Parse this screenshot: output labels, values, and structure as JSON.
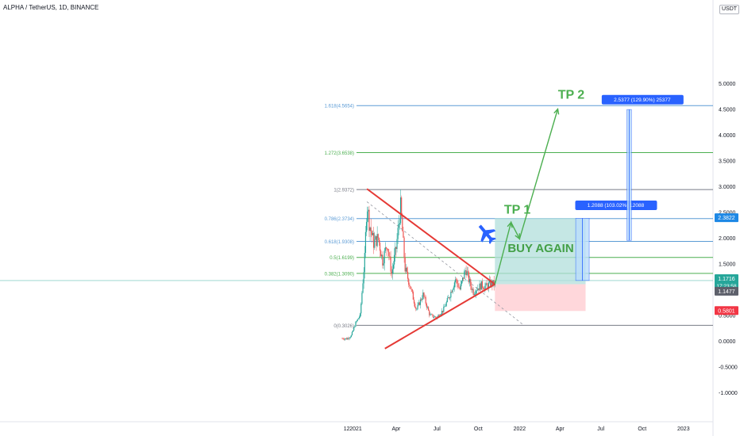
{
  "header": {
    "title": "ALPHA / TetherUS, 1D, BINANCE",
    "currency": "USDT"
  },
  "colors": {
    "fib_blue": "#5b9bd5",
    "fib_green": "#4caf50",
    "fib_grey": "#787b86",
    "triangle": "#e53935",
    "target_arrow": "#4caf50",
    "buy_text": "#43a047",
    "up_candle": "#26a69a",
    "down_candle": "#ef5350",
    "profit_zone": "#b2dfdb",
    "loss_zone": "#ffcdd2",
    "measure_blue": "#2962ff",
    "rocket": "#2962ff"
  },
  "chart_data": {
    "type": "candlestick",
    "symbol": "ALPHA / TetherUS",
    "timeframe": "1D",
    "exchange": "BINANCE",
    "y_axis": {
      "range": [
        -1.2,
        5.2
      ],
      "ticks": [
        5.0,
        4.5,
        4.0,
        3.5,
        3.0,
        2.5,
        2.0,
        1.5,
        1.0,
        0.5,
        0.0,
        -0.5,
        -1.0
      ],
      "tick_labels": [
        "5.0000",
        "4.5000",
        "4.0000",
        "3.5000",
        "3.0000",
        "2.5000",
        "2.0000",
        "1.5000",
        "1.0000",
        "0.5000",
        "0.0000",
        "-0.5000",
        "-1.0000"
      ]
    },
    "x_axis": {
      "labels": [
        {
          "t": -20,
          "label": "12"
        },
        {
          "t": 0,
          "label": "2021"
        },
        {
          "t": 90,
          "label": "Apr"
        },
        {
          "t": 181,
          "label": "Jul"
        },
        {
          "t": 273,
          "label": "Oct"
        },
        {
          "t": 365,
          "label": "2022"
        },
        {
          "t": 455,
          "label": "Apr"
        },
        {
          "t": 546,
          "label": "Jul"
        },
        {
          "t": 638,
          "label": "Oct"
        },
        {
          "t": 730,
          "label": "2023"
        }
      ]
    },
    "fib_levels": [
      {
        "label": "1.618(4.5654)",
        "value": 4.5654,
        "color": "fib_blue"
      },
      {
        "label": "1.272(3.6538)",
        "value": 3.6538,
        "color": "fib_green"
      },
      {
        "label": "1(2.9372)",
        "value": 2.9372,
        "color": "fib_grey"
      },
      {
        "label": "0.786(2.3734)",
        "value": 2.3734,
        "color": "fib_blue"
      },
      {
        "label": "0.618(1.9308)",
        "value": 1.9308,
        "color": "fib_blue"
      },
      {
        "label": "0.5(1.6199)",
        "value": 1.6199,
        "color": "fib_green"
      },
      {
        "label": "0.382(1.3090)",
        "value": 1.309,
        "color": "fib_green"
      },
      {
        "label": "0(0.3026)",
        "value": 0.3026,
        "color": "fib_grey"
      }
    ],
    "price_path": [
      [
        -30,
        0.05
      ],
      [
        -20,
        0.04
      ],
      [
        -10,
        0.1
      ],
      [
        0,
        0.35
      ],
      [
        10,
        0.5
      ],
      [
        20,
        1.6
      ],
      [
        25,
        2.7
      ],
      [
        30,
        2.3
      ],
      [
        40,
        1.9
      ],
      [
        50,
        2.0
      ],
      [
        60,
        1.55
      ],
      [
        70,
        1.9
      ],
      [
        80,
        1.3
      ],
      [
        90,
        1.8
      ],
      [
        100,
        2.6
      ],
      [
        110,
        1.4
      ],
      [
        120,
        1.1
      ],
      [
        135,
        0.6
      ],
      [
        150,
        0.9
      ],
      [
        165,
        0.5
      ],
      [
        180,
        0.45
      ],
      [
        195,
        0.6
      ],
      [
        210,
        0.9
      ],
      [
        222,
        1.2
      ],
      [
        232,
        1.0
      ],
      [
        245,
        1.4
      ],
      [
        255,
        1.1
      ],
      [
        262,
        0.95
      ],
      [
        270,
        1.02
      ],
      [
        280,
        1.08
      ],
      [
        290,
        1.05
      ],
      [
        300,
        1.12
      ],
      [
        310,
        1.1
      ]
    ],
    "triangle": {
      "upper_line": [
        [
          25,
          2.95
        ],
        [
          310,
          1.1
        ]
      ],
      "lower_line": [
        [
          65,
          -0.15
        ],
        [
          310,
          1.1
        ]
      ],
      "dashed_line": [
        [
          25,
          2.7
        ],
        [
          375,
          0.3
        ]
      ]
    },
    "annotations": [
      {
        "text": "TP 1",
        "at": [
          360,
          2.47
        ],
        "color": "target_arrow"
      },
      {
        "text": "TP 2",
        "at": [
          480,
          4.7
        ],
        "color": "target_arrow"
      },
      {
        "text": "BUY AGAIN",
        "at": [
          412,
          1.72
        ],
        "color": "buy_text"
      }
    ],
    "target_path": [
      [
        310,
        1.1
      ],
      [
        346,
        2.3
      ],
      [
        365,
        1.98
      ],
      [
        450,
        4.5
      ]
    ],
    "profit_zone": {
      "t": [
        310,
        512
      ],
      "y": [
        1.1,
        2.3822
      ]
    },
    "loss_zone": {
      "t": [
        310,
        512
      ],
      "y": [
        0.58,
        1.1
      ]
    },
    "measures": [
      {
        "label": "1.2088 (103.02%) 12088",
        "t_range": [
          490,
          520
        ],
        "y_range": [
          1.1716,
          2.38
        ],
        "label_at": [
          496,
          2.6
        ]
      },
      {
        "label": "2.5377 (129.90%) 25377",
        "t_range": [
          604,
          614
        ],
        "y_range": [
          1.95,
          4.49
        ],
        "label_at": [
          555,
          4.65
        ]
      }
    ],
    "price_labels": [
      {
        "value": 2.3822,
        "label": "2.3822",
        "bg": "#1e88e5"
      },
      {
        "value": 1.2,
        "label": "1.1716",
        "bg": "#26a69a",
        "countdown": "17:23:58"
      },
      {
        "value": 0.955,
        "label": "1.1477",
        "bg": "#5d606b"
      },
      {
        "value": 0.58,
        "label": "0.5801",
        "bg": "#f23645"
      }
    ]
  }
}
